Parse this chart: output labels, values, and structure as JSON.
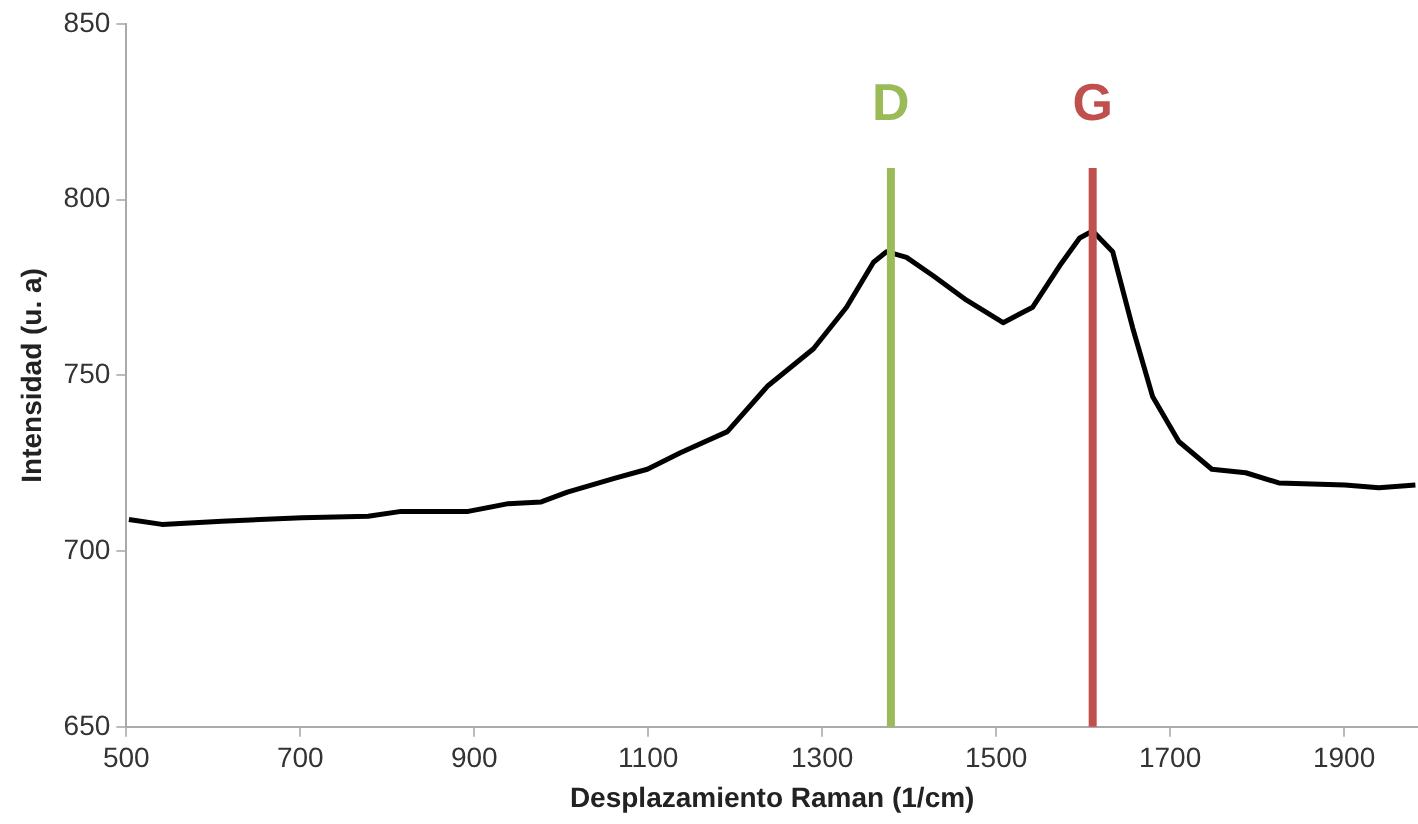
{
  "chart_data": {
    "type": "line",
    "xlabel": "Desplazamiento Raman (1/cm)",
    "ylabel": "Intensidad (u. a)",
    "xlim": [
      500,
      1985
    ],
    "xticks": [
      500,
      700,
      900,
      1100,
      1300,
      1500,
      1700,
      1900
    ],
    "ylim": [
      650,
      850
    ],
    "yticks": [
      650,
      700,
      750,
      800,
      850
    ],
    "grid": false,
    "legend": false,
    "marker": "none",
    "line_style": "solid",
    "series": [
      {
        "color": "#000000",
        "x": [
          503,
          541,
          610,
          702,
          778,
          816,
          893,
          939,
          977,
          1007,
          1061,
          1099,
          1137,
          1191,
          1237,
          1290,
          1328,
          1359,
          1374,
          1397,
          1428,
          1466,
          1508,
          1542,
          1573,
          1596,
          1611,
          1634,
          1657,
          1680,
          1710,
          1748,
          1787,
          1825,
          1901,
          1940,
          1982
        ],
        "values": [
          709,
          707.6,
          708.5,
          709.5,
          709.9,
          711.3,
          711.3,
          713.5,
          714,
          716.8,
          720.7,
          723.3,
          728,
          734,
          746.9,
          757.6,
          769.4,
          782.2,
          785.2,
          783.6,
          778.3,
          771.4,
          765,
          769.4,
          781.2,
          789.1,
          791.1,
          785.2,
          763.5,
          743.9,
          731.2,
          723.3,
          722.3,
          719.4,
          718.8,
          718,
          718.8
        ]
      }
    ],
    "ref_lines": [
      {
        "axis": "x",
        "value": 1379,
        "label": "D",
        "color": "#9bbb59"
      },
      {
        "axis": "x",
        "value": 1611,
        "label": "G",
        "color": "#c0504d"
      }
    ]
  }
}
